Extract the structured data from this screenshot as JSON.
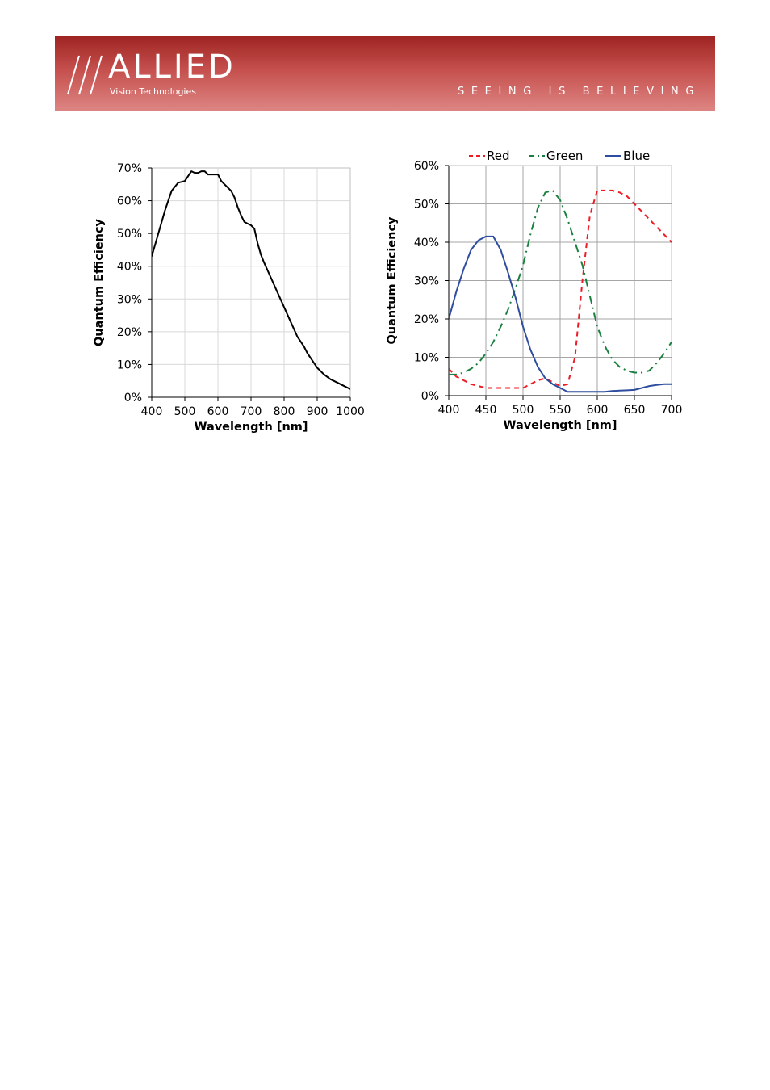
{
  "header": {
    "brand": "ALLIED",
    "brand_sub": "Vision Technologies",
    "tagline": "SEEING IS BELIEVING",
    "brand_color": "#b53a37",
    "logo_icon": "triple-slash-logo-icon"
  },
  "chart_data": [
    {
      "type": "line",
      "title": "",
      "xlabel": "Wavelength [nm]",
      "ylabel": "Quantum Efficiency",
      "xlim": [
        400,
        1000
      ],
      "ylim": [
        0,
        70
      ],
      "xticks": [
        "400",
        "500",
        "600",
        "700",
        "800",
        "900",
        "1000"
      ],
      "yticks": [
        "0%",
        "10%",
        "20%",
        "30%",
        "40%",
        "50%",
        "60%",
        "70%"
      ],
      "grid": true,
      "legend": "none",
      "series": [
        {
          "color": "#000000",
          "style": "solid",
          "x": [
            400,
            420,
            440,
            460,
            480,
            500,
            510,
            520,
            530,
            540,
            550,
            560,
            570,
            580,
            590,
            600,
            610,
            620,
            640,
            650,
            660,
            670,
            680,
            690,
            700,
            710,
            720,
            730,
            740,
            760,
            780,
            800,
            820,
            840,
            860,
            870,
            880,
            900,
            920,
            940,
            950,
            960,
            980,
            1000
          ],
          "y": [
            43,
            50,
            57,
            63,
            65.5,
            66,
            67.5,
            69,
            68.5,
            68.5,
            69,
            69,
            68,
            68,
            68,
            68,
            66,
            65,
            63,
            61,
            58,
            55.5,
            53.5,
            53,
            52.5,
            51.5,
            47,
            43.5,
            41,
            36.5,
            32,
            27.5,
            23,
            18.5,
            15.5,
            13.5,
            12,
            9,
            7,
            5.5,
            5,
            4.5,
            3.5,
            2.5
          ]
        }
      ]
    },
    {
      "type": "line",
      "title": "",
      "xlabel": "Wavelength [nm]",
      "ylabel": "Quantum Efficiency",
      "xlim": [
        400,
        700
      ],
      "ylim": [
        0,
        60
      ],
      "xticks": [
        "400",
        "450",
        "500",
        "550",
        "600",
        "650",
        "700"
      ],
      "yticks": [
        "0%",
        "10%",
        "20%",
        "30%",
        "40%",
        "50%",
        "60%"
      ],
      "grid": true,
      "legend": "top",
      "series": [
        {
          "name": "Red",
          "color": "#ee1c25",
          "style": "dashed",
          "x": [
            400,
            410,
            420,
            430,
            440,
            450,
            460,
            470,
            480,
            490,
            500,
            510,
            520,
            530,
            540,
            550,
            560,
            570,
            580,
            590,
            600,
            610,
            620,
            630,
            640,
            650,
            660,
            670,
            680,
            690,
            700
          ],
          "y": [
            7,
            5,
            4,
            3,
            2.5,
            2,
            2,
            2,
            2,
            2,
            2,
            3,
            4,
            4.5,
            3.5,
            2.5,
            3,
            10,
            30,
            47,
            53.5,
            53.5,
            53.5,
            53,
            52,
            50,
            48,
            46,
            44,
            42,
            40
          ]
        },
        {
          "name": "Green",
          "color": "#1a8040",
          "style": "dashdot",
          "x": [
            400,
            410,
            420,
            430,
            440,
            450,
            460,
            470,
            480,
            490,
            500,
            510,
            520,
            530,
            540,
            550,
            560,
            570,
            580,
            590,
            600,
            610,
            620,
            630,
            640,
            650,
            660,
            670,
            680,
            690,
            700
          ],
          "y": [
            5.5,
            5.5,
            6,
            7,
            8.5,
            11,
            14,
            18,
            22.5,
            28,
            34,
            42,
            49,
            53,
            53.5,
            51,
            46,
            40,
            34,
            26,
            18,
            13,
            9.5,
            7.5,
            6.5,
            6,
            6,
            6.5,
            8.5,
            11,
            14
          ]
        },
        {
          "name": "Blue",
          "color": "#2e4d9e",
          "style": "solid",
          "x": [
            400,
            410,
            420,
            430,
            440,
            450,
            460,
            470,
            480,
            490,
            500,
            510,
            520,
            530,
            540,
            550,
            560,
            570,
            580,
            590,
            600,
            610,
            620,
            630,
            640,
            650,
            660,
            670,
            680,
            690,
            700
          ],
          "y": [
            20,
            27,
            33,
            38,
            40.5,
            41.5,
            41.5,
            38,
            32,
            25.5,
            18,
            12,
            7.5,
            4.5,
            3,
            2,
            1,
            1,
            1,
            1,
            1,
            1,
            1.2,
            1.3,
            1.4,
            1.5,
            2,
            2.5,
            2.8,
            3,
            3
          ]
        }
      ]
    }
  ]
}
